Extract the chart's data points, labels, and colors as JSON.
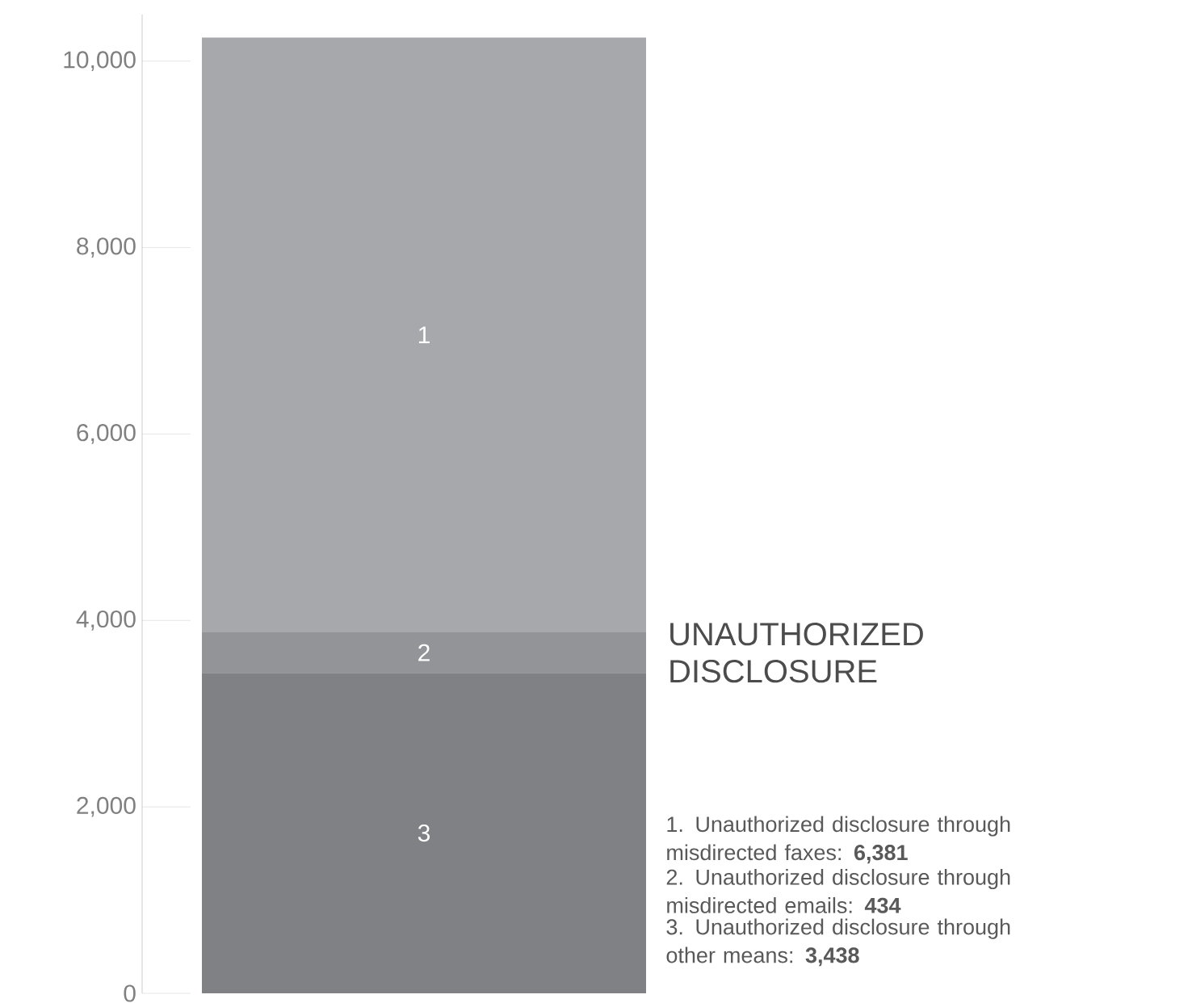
{
  "chart_data": {
    "type": "bar",
    "stacked": true,
    "categories": [
      null
    ],
    "series": [
      {
        "name": "3",
        "color": "#808184",
        "values": [
          3438
        ]
      },
      {
        "name": "2",
        "color": "#939497",
        "values": [
          434
        ]
      },
      {
        "name": "1",
        "color": "#a7a8ab",
        "values": [
          6381
        ]
      }
    ],
    "ylim": [
      0,
      10500
    ],
    "yticks": [
      0,
      {
        "value": 2000,
        "label": "2,000"
      },
      {
        "value": 4000,
        "label": "4,000"
      },
      {
        "value": 6000,
        "label": "6,000"
      },
      {
        "value": 8000,
        "label": "8,000"
      },
      {
        "value": 10000,
        "label": "10,000"
      }
    ],
    "legend_title": "UNAUTHORIZED DISCLOSURE",
    "annotations": [
      "1. Unauthorized disclosure through misdirected faxes: **6,381**",
      "2. Unauthorized disclosure through misdirected emails: **434**",
      "3. Unauthorized disclosure through other means: **3,438**"
    ]
  }
}
